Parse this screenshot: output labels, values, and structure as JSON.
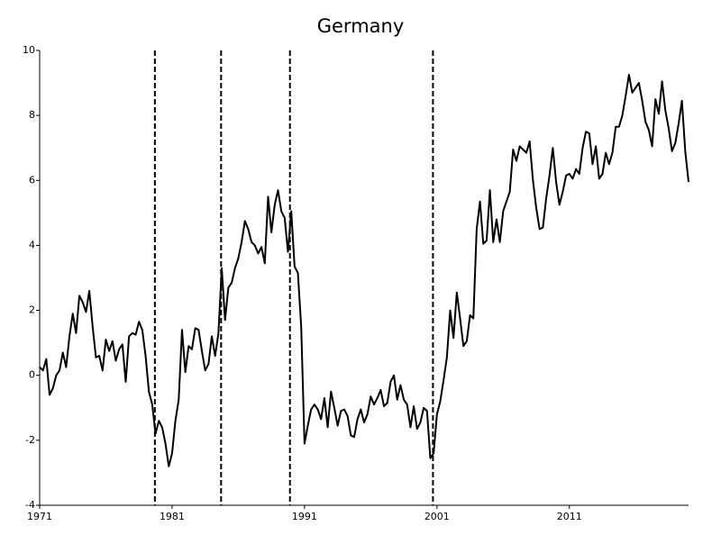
{
  "chart_data": {
    "type": "line",
    "title": "Germany",
    "x": [
      1971,
      1971.25,
      1971.5,
      1971.75,
      1972,
      1972.25,
      1972.5,
      1972.75,
      1973,
      1973.25,
      1973.5,
      1973.75,
      1974,
      1974.25,
      1974.5,
      1974.75,
      1975,
      1975.25,
      1975.5,
      1975.75,
      1976,
      1976.25,
      1976.5,
      1976.75,
      1977,
      1977.25,
      1977.5,
      1977.75,
      1978,
      1978.25,
      1978.5,
      1978.75,
      1979,
      1979.25,
      1979.5,
      1979.75,
      1980,
      1980.25,
      1980.5,
      1980.75,
      1981,
      1981.25,
      1981.5,
      1981.75,
      1982,
      1982.25,
      1982.5,
      1982.75,
      1983,
      1983.25,
      1983.5,
      1983.75,
      1984,
      1984.25,
      1984.5,
      1984.75,
      1985,
      1985.25,
      1985.5,
      1985.75,
      1986,
      1986.25,
      1986.5,
      1986.75,
      1987,
      1987.25,
      1987.5,
      1987.75,
      1988,
      1988.25,
      1988.5,
      1988.75,
      1989,
      1989.25,
      1989.5,
      1989.75,
      1990,
      1990.25,
      1990.5,
      1990.75,
      1991,
      1991.25,
      1991.5,
      1991.75,
      1992,
      1992.25,
      1992.5,
      1992.75,
      1993,
      1993.25,
      1993.5,
      1993.75,
      1994,
      1994.25,
      1994.5,
      1994.75,
      1995,
      1995.25,
      1995.5,
      1995.75,
      1996,
      1996.25,
      1996.5,
      1996.75,
      1997,
      1997.25,
      1997.5,
      1997.75,
      1998,
      1998.25,
      1998.5,
      1998.75,
      1999,
      1999.25,
      1999.5,
      1999.75,
      2000,
      2000.25,
      2000.5,
      2000.75,
      2001,
      2001.25,
      2001.5,
      2001.75,
      2002,
      2002.25,
      2002.5,
      2002.75,
      2003,
      2003.25,
      2003.5,
      2003.75,
      2004,
      2004.25,
      2004.5,
      2004.75,
      2005,
      2005.25,
      2005.5,
      2005.75,
      2006,
      2006.25,
      2006.5,
      2006.75,
      2007,
      2007.25,
      2007.5,
      2007.75,
      2008,
      2008.25,
      2008.5,
      2008.75,
      2009,
      2009.25,
      2009.5,
      2009.75,
      2010,
      2010.25,
      2010.5,
      2010.75,
      2011,
      2011.25,
      2011.5,
      2011.75,
      2012,
      2012.25,
      2012.5,
      2012.75,
      2013,
      2013.25,
      2013.5,
      2013.75,
      2014,
      2014.25,
      2014.5,
      2014.75,
      2015,
      2015.25,
      2015.5,
      2015.75,
      2016,
      2016.25,
      2016.5,
      2016.75,
      2017,
      2017.25,
      2017.5,
      2017.75,
      2018,
      2018.25,
      2018.5,
      2018.75,
      2019,
      2019.25,
      2019.5,
      2019.75,
      2020
    ],
    "values": [
      0.25,
      0.15,
      0.5,
      -0.6,
      -0.4,
      0.0,
      0.15,
      0.7,
      0.25,
      1.2,
      1.9,
      1.3,
      2.45,
      2.25,
      1.95,
      2.6,
      1.5,
      0.55,
      0.6,
      0.15,
      1.1,
      0.75,
      1.05,
      0.45,
      0.8,
      0.95,
      -0.2,
      1.2,
      1.3,
      1.25,
      1.65,
      1.4,
      0.6,
      -0.5,
      -0.9,
      -1.8,
      -1.4,
      -1.6,
      -2.1,
      -2.8,
      -2.4,
      -1.4,
      -0.75,
      1.4,
      0.1,
      0.9,
      0.8,
      1.45,
      1.4,
      0.75,
      0.15,
      0.35,
      1.2,
      0.6,
      1.3,
      3.3,
      1.7,
      2.7,
      2.85,
      3.3,
      3.6,
      4.1,
      4.75,
      4.5,
      4.1,
      4.0,
      3.75,
      3.95,
      3.45,
      5.5,
      4.4,
      5.25,
      5.7,
      5.05,
      4.85,
      3.8,
      5.05,
      3.35,
      3.15,
      1.5,
      -2.1,
      -1.55,
      -1.05,
      -0.9,
      -1.05,
      -1.35,
      -0.7,
      -1.6,
      -0.5,
      -1.0,
      -1.55,
      -1.1,
      -1.05,
      -1.25,
      -1.85,
      -1.9,
      -1.35,
      -1.05,
      -1.45,
      -1.2,
      -0.65,
      -0.9,
      -0.7,
      -0.45,
      -0.95,
      -0.85,
      -0.2,
      0.0,
      -0.75,
      -0.3,
      -0.75,
      -0.9,
      -1.6,
      -0.95,
      -1.65,
      -1.45,
      -1.0,
      -1.1,
      -2.55,
      -2.4,
      -1.2,
      -0.8,
      -0.15,
      0.55,
      2.0,
      1.15,
      2.55,
      1.75,
      0.9,
      1.05,
      1.85,
      1.75,
      4.5,
      5.35,
      4.05,
      4.15,
      5.7,
      4.1,
      4.8,
      4.1,
      5.05,
      5.35,
      5.65,
      6.95,
      6.6,
      7.05,
      6.95,
      6.85,
      7.2,
      6.0,
      5.15,
      4.5,
      4.55,
      5.45,
      6.15,
      7.0,
      5.95,
      5.25,
      5.65,
      6.15,
      6.2,
      6.05,
      6.35,
      6.2,
      7.0,
      7.5,
      7.45,
      6.5,
      7.05,
      6.05,
      6.2,
      6.85,
      6.5,
      6.85,
      7.65,
      7.65,
      8.0,
      8.6,
      9.25,
      8.7,
      8.85,
      9.0,
      8.45,
      7.8,
      7.55,
      7.05,
      8.5,
      8.05,
      9.05,
      8.15,
      7.6,
      6.9,
      7.15,
      7.75,
      8.45,
      6.9,
      5.95
    ],
    "color": "#000000",
    "vlines": [
      1979.7,
      1984.7,
      1989.9,
      2000.7
    ],
    "xlim": [
      1971,
      2020
    ],
    "xticks": [
      1971,
      1981,
      1991,
      2001,
      2011
    ],
    "ylim": [
      -4,
      10
    ],
    "yticks": [
      -4,
      -2,
      0,
      2,
      4,
      6,
      8,
      10
    ]
  }
}
